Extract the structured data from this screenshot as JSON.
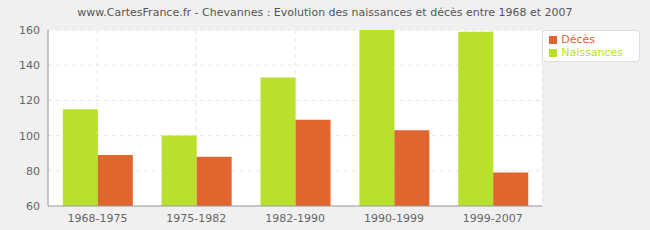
{
  "chart_data": {
    "type": "bar",
    "title": "www.CartesFrance.fr - Chevannes : Evolution des naissances et décès entre 1968 et 2007",
    "categories": [
      "1968-1975",
      "1975-1982",
      "1982-1990",
      "1990-1999",
      "1999-2007"
    ],
    "series": [
      {
        "name": "Naissances",
        "color": "#b8e02c",
        "values": [
          115,
          100,
          133,
          160,
          159
        ]
      },
      {
        "name": "Décès",
        "color": "#e0652e",
        "values": [
          89,
          88,
          109,
          103,
          79
        ]
      }
    ],
    "ylim": [
      60,
      160
    ],
    "yticks": [
      60,
      80,
      100,
      120,
      140,
      160
    ],
    "grid": true,
    "legend": "upper right"
  }
}
